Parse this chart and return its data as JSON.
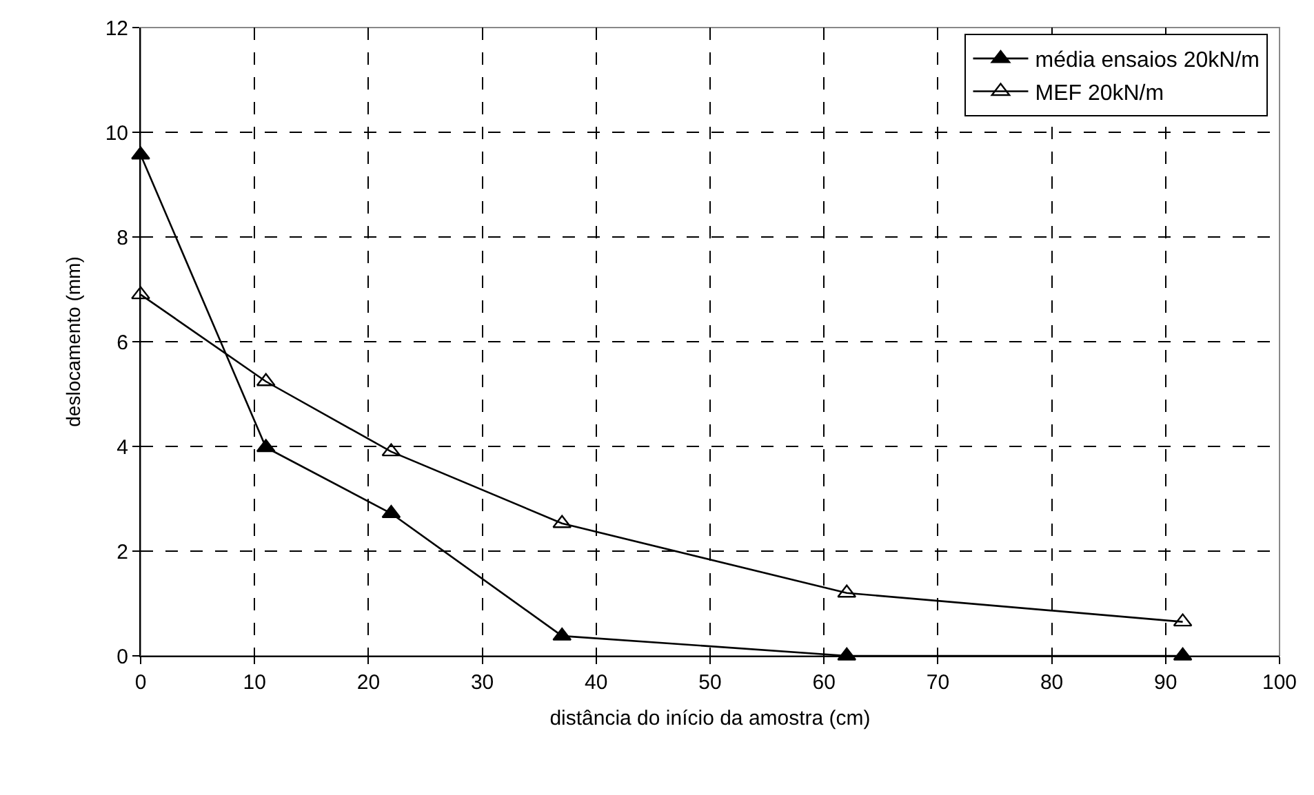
{
  "chart_data": {
    "type": "line",
    "xlabel": "distância do início da amostra (cm)",
    "ylabel": "deslocamento (mm)",
    "x": [
      0,
      11,
      22,
      37,
      62,
      91.5
    ],
    "series": [
      {
        "name": "média ensaios 20kN/m",
        "color": "#000000",
        "marker": "triangle",
        "values": [
          9.57,
          3.98,
          2.72,
          0.38,
          0,
          0
        ]
      },
      {
        "name": "MEF 20kN/m",
        "color": "#000000",
        "marker": "triangle-open",
        "values": [
          6.9,
          5.24,
          3.9,
          2.53,
          1.2,
          0.65
        ]
      }
    ],
    "xlim": [
      0,
      100
    ],
    "xticks": [
      0,
      10,
      20,
      30,
      40,
      50,
      60,
      70,
      80,
      90,
      100
    ],
    "ylim": [
      0,
      12
    ],
    "yticks": [
      0,
      2,
      4,
      6,
      8,
      10,
      12
    ],
    "grid": true,
    "legend": "top right",
    "line_style": "solid"
  }
}
